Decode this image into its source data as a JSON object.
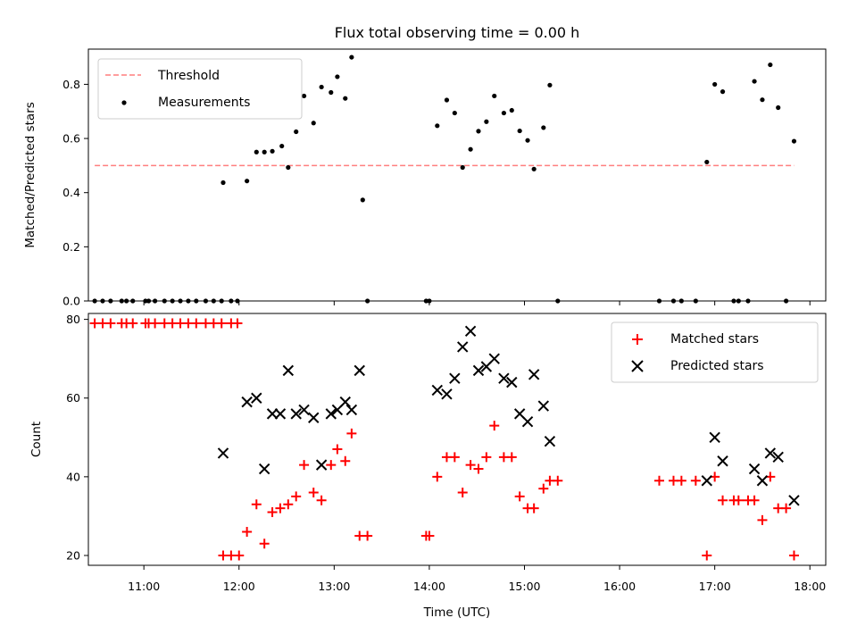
{
  "chart_data": [
    {
      "type": "scatter",
      "title": "Flux total observing time = 0.00 h",
      "ylabel": "Matched/Predicted stars",
      "xlim": [
        "10:25",
        "18:10"
      ],
      "ylim": [
        0,
        0.93
      ],
      "yticks": [
        "0.0",
        "0.2",
        "0.4",
        "0.6",
        "0.8"
      ],
      "grid": false,
      "legend_position": "top-left",
      "threshold": {
        "name": "Threshold",
        "value": 0.5,
        "x_range": [
          "10:29",
          "17:50"
        ],
        "color": "#ff7f7f",
        "dash": "dashed"
      },
      "series": [
        {
          "name": "Measurements",
          "marker": "dot",
          "color": "#000000",
          "points": [
            [
              "10:29",
              0
            ],
            [
              "10:34",
              0
            ],
            [
              "10:39",
              0
            ],
            [
              "10:46",
              0
            ],
            [
              "10:49",
              0
            ],
            [
              "10:53",
              0
            ],
            [
              "11:01",
              0
            ],
            [
              "11:03",
              0
            ],
            [
              "11:07",
              0
            ],
            [
              "11:13",
              0
            ],
            [
              "11:18",
              0
            ],
            [
              "11:23",
              0
            ],
            [
              "11:28",
              0
            ],
            [
              "11:33",
              0
            ],
            [
              "11:39",
              0
            ],
            [
              "11:44",
              0
            ],
            [
              "11:49",
              0
            ],
            [
              "11:55",
              0
            ],
            [
              "11:59",
              0
            ],
            [
              "11:50",
              0.437
            ],
            [
              "12:05",
              0.443
            ],
            [
              "12:11",
              0.55
            ],
            [
              "12:16",
              0.55
            ],
            [
              "12:21",
              0.553
            ],
            [
              "12:27",
              0.572
            ],
            [
              "12:31",
              0.493
            ],
            [
              "12:36",
              0.625
            ],
            [
              "12:41",
              0.757
            ],
            [
              "12:47",
              0.657
            ],
            [
              "12:52",
              0.79
            ],
            [
              "12:58",
              0.77
            ],
            [
              "13:02",
              0.828
            ],
            [
              "13:07",
              0.748
            ],
            [
              "13:11",
              0.9
            ],
            [
              "13:18",
              0.373
            ],
            [
              "13:21",
              0
            ],
            [
              "13:58",
              0
            ],
            [
              "14:00",
              0
            ],
            [
              "14:05",
              0.647
            ],
            [
              "14:11",
              0.742
            ],
            [
              "14:16",
              0.694
            ],
            [
              "14:21",
              0.493
            ],
            [
              "14:26",
              0.56
            ],
            [
              "14:31",
              0.627
            ],
            [
              "14:36",
              0.662
            ],
            [
              "14:41",
              0.757
            ],
            [
              "14:47",
              0.694
            ],
            [
              "14:52",
              0.704
            ],
            [
              "14:57",
              0.628
            ],
            [
              "15:02",
              0.593
            ],
            [
              "15:06",
              0.487
            ],
            [
              "15:12",
              0.64
            ],
            [
              "15:16",
              0.797
            ],
            [
              "15:21",
              0
            ],
            [
              "16:25",
              0
            ],
            [
              "16:34",
              0
            ],
            [
              "16:39",
              0
            ],
            [
              "16:48",
              0
            ],
            [
              "16:55",
              0.513
            ],
            [
              "17:00",
              0.8
            ],
            [
              "17:05",
              0.773
            ],
            [
              "17:12",
              0
            ],
            [
              "17:15",
              0
            ],
            [
              "17:21",
              0
            ],
            [
              "17:25",
              0.811
            ],
            [
              "17:30",
              0.743
            ],
            [
              "17:35",
              0.872
            ],
            [
              "17:40",
              0.714
            ],
            [
              "17:45",
              0
            ],
            [
              "17:50",
              0.59
            ]
          ]
        }
      ]
    },
    {
      "type": "scatter",
      "xlabel": "Time (UTC)",
      "ylabel": "Count",
      "xlim": [
        "10:25",
        "18:10"
      ],
      "xticks": [
        "11:00",
        "12:00",
        "13:00",
        "14:00",
        "15:00",
        "16:00",
        "17:00",
        "18:00"
      ],
      "ylim": [
        17.5,
        81.5
      ],
      "yticks": [
        "20",
        "40",
        "60",
        "80"
      ],
      "grid": false,
      "legend_position": "top-right",
      "series": [
        {
          "name": "Matched stars",
          "marker": "plus",
          "color": "#ff0000",
          "points": [
            [
              "10:29",
              79
            ],
            [
              "10:34",
              79
            ],
            [
              "10:39",
              79
            ],
            [
              "10:46",
              79
            ],
            [
              "10:49",
              79
            ],
            [
              "10:53",
              79
            ],
            [
              "11:01",
              79
            ],
            [
              "11:03",
              79
            ],
            [
              "11:07",
              79
            ],
            [
              "11:13",
              79
            ],
            [
              "11:18",
              79
            ],
            [
              "11:23",
              79
            ],
            [
              "11:28",
              79
            ],
            [
              "11:33",
              79
            ],
            [
              "11:39",
              79
            ],
            [
              "11:44",
              79
            ],
            [
              "11:49",
              79
            ],
            [
              "11:55",
              79
            ],
            [
              "11:59",
              79
            ],
            [
              "11:50",
              20
            ],
            [
              "11:55",
              20
            ],
            [
              "12:00",
              20
            ],
            [
              "12:05",
              26
            ],
            [
              "12:11",
              33
            ],
            [
              "12:16",
              23
            ],
            [
              "12:21",
              31
            ],
            [
              "12:26",
              32
            ],
            [
              "12:31",
              33
            ],
            [
              "12:36",
              35
            ],
            [
              "12:41",
              43
            ],
            [
              "12:47",
              36
            ],
            [
              "12:52",
              34
            ],
            [
              "12:58",
              43
            ],
            [
              "13:02",
              47
            ],
            [
              "13:07",
              44
            ],
            [
              "13:11",
              51
            ],
            [
              "13:16",
              25
            ],
            [
              "13:21",
              25
            ],
            [
              "13:58",
              25
            ],
            [
              "14:00",
              25
            ],
            [
              "14:05",
              40
            ],
            [
              "14:11",
              45
            ],
            [
              "14:16",
              45
            ],
            [
              "14:21",
              36
            ],
            [
              "14:26",
              43
            ],
            [
              "14:31",
              42
            ],
            [
              "14:36",
              45
            ],
            [
              "14:41",
              53
            ],
            [
              "14:47",
              45
            ],
            [
              "14:52",
              45
            ],
            [
              "14:57",
              35
            ],
            [
              "15:02",
              32
            ],
            [
              "15:06",
              32
            ],
            [
              "15:12",
              37
            ],
            [
              "15:16",
              39
            ],
            [
              "15:21",
              39
            ],
            [
              "16:25",
              39
            ],
            [
              "16:34",
              39
            ],
            [
              "16:39",
              39
            ],
            [
              "16:48",
              39
            ],
            [
              "16:55",
              20
            ],
            [
              "17:00",
              40
            ],
            [
              "17:05",
              34
            ],
            [
              "17:12",
              34
            ],
            [
              "17:15",
              34
            ],
            [
              "17:21",
              34
            ],
            [
              "17:25",
              34
            ],
            [
              "17:30",
              29
            ],
            [
              "17:35",
              40
            ],
            [
              "17:40",
              32
            ],
            [
              "17:45",
              32
            ],
            [
              "17:50",
              20
            ]
          ]
        },
        {
          "name": "Predicted stars",
          "marker": "x",
          "color": "#000000",
          "points": [
            [
              "11:50",
              46
            ],
            [
              "12:05",
              59
            ],
            [
              "12:11",
              60
            ],
            [
              "12:16",
              42
            ],
            [
              "12:21",
              56
            ],
            [
              "12:26",
              56
            ],
            [
              "12:31",
              67
            ],
            [
              "12:36",
              56
            ],
            [
              "12:41",
              57
            ],
            [
              "12:47",
              55
            ],
            [
              "12:52",
              43
            ],
            [
              "12:58",
              56
            ],
            [
              "13:02",
              57
            ],
            [
              "13:07",
              59
            ],
            [
              "13:11",
              57
            ],
            [
              "13:16",
              67
            ],
            [
              "14:05",
              62
            ],
            [
              "14:11",
              61
            ],
            [
              "14:16",
              65
            ],
            [
              "14:21",
              73
            ],
            [
              "14:26",
              77
            ],
            [
              "14:31",
              67
            ],
            [
              "14:36",
              68
            ],
            [
              "14:41",
              70
            ],
            [
              "14:47",
              65
            ],
            [
              "14:52",
              64
            ],
            [
              "14:57",
              56
            ],
            [
              "15:02",
              54
            ],
            [
              "15:06",
              66
            ],
            [
              "15:12",
              58
            ],
            [
              "15:16",
              49
            ],
            [
              "16:55",
              39
            ],
            [
              "17:00",
              50
            ],
            [
              "17:05",
              44
            ],
            [
              "17:25",
              42
            ],
            [
              "17:30",
              39
            ],
            [
              "17:35",
              46
            ],
            [
              "17:40",
              45
            ],
            [
              "17:50",
              34
            ]
          ]
        }
      ]
    }
  ]
}
